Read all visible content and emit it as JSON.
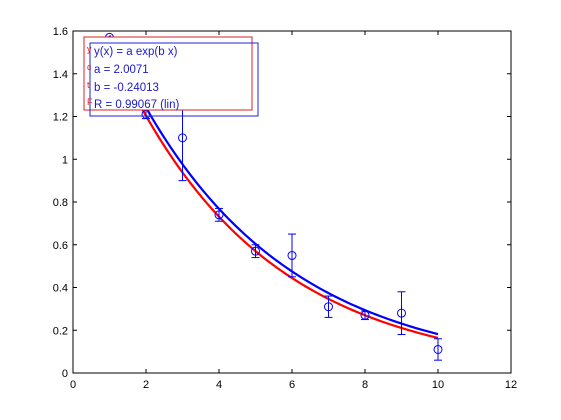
{
  "chart_data": {
    "type": "scatter",
    "title": "",
    "xlabel": "",
    "ylabel": "",
    "xlim": [
      0,
      12
    ],
    "ylim": [
      0,
      1.6
    ],
    "x_ticks": [
      0,
      2,
      4,
      6,
      8,
      10,
      12
    ],
    "y_ticks": [
      0,
      0.2,
      0.4,
      0.6,
      0.8,
      1,
      1.2,
      1.4,
      1.6
    ],
    "x_tick_labels": [
      "0",
      "2",
      "4",
      "6",
      "8",
      "10",
      "12"
    ],
    "y_tick_labels": [
      "0",
      "0.2",
      "0.4",
      "0.6",
      "0.8",
      "1",
      "1.2",
      "1.4",
      "1.6"
    ],
    "grid": false,
    "points": [
      {
        "x": 1,
        "y": 1.57,
        "err": 0.0
      },
      {
        "x": 2,
        "y": 1.21,
        "err": 0.02
      },
      {
        "x": 3,
        "y": 1.1,
        "err": 0.2
      },
      {
        "x": 4,
        "y": 0.74,
        "err": 0.03
      },
      {
        "x": 5,
        "y": 0.57,
        "err": 0.03
      },
      {
        "x": 6,
        "y": 0.55,
        "err": 0.1
      },
      {
        "x": 7,
        "y": 0.31,
        "err": 0.05
      },
      {
        "x": 8,
        "y": 0.27,
        "err": 0.02
      },
      {
        "x": 9,
        "y": 0.28,
        "err": 0.1
      },
      {
        "x": 10,
        "y": 0.11,
        "err": 0.05
      }
    ],
    "curves": [
      {
        "color": "#0000ff",
        "a": 2.0071,
        "b": -0.24013,
        "x_range": [
          1,
          10
        ]
      },
      {
        "color": "#ff0000",
        "a": 1.98,
        "b": -0.249,
        "x_range": [
          1,
          10
        ]
      }
    ],
    "colors": {
      "points": "#0000ff",
      "fit_blue": "#0000ff",
      "fit_red": "#ff0000",
      "axes": "#000000"
    }
  },
  "legend": {
    "lines": [
      {
        "prefix": "y",
        "text": "y(x) = a exp(b x)"
      },
      {
        "prefix": "c",
        "text": "a = 2.0071"
      },
      {
        "prefix": "t",
        "text": "b = -0.24013"
      },
      {
        "prefix": "F",
        "text": "R = 0.99067  (lin)"
      }
    ]
  }
}
